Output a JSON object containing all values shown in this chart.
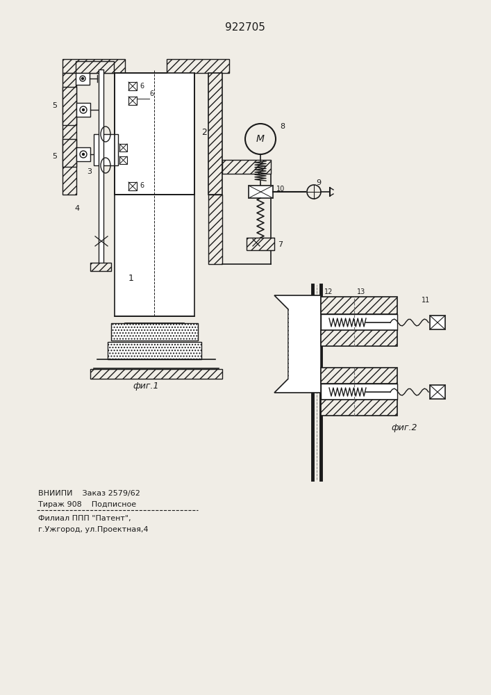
{
  "title": "922705",
  "fig1_label": "фиг.1",
  "fig2_label": "фиг.2",
  "footer_line1": "ВНИИПИ    Заказ 2579/62",
  "footer_line2": "Тираж 908    Подписное",
  "footer_line3": "Филиал ППП \"Патент\",",
  "footer_line4": "г.Ужгород, ул.Проектная,4",
  "bg_color": "#f0ede6",
  "line_color": "#1a1a1a"
}
